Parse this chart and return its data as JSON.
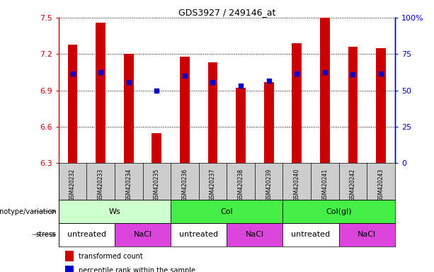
{
  "title": "GDS3927 / 249146_at",
  "samples": [
    "GSM420232",
    "GSM420233",
    "GSM420234",
    "GSM420235",
    "GSM420236",
    "GSM420237",
    "GSM420238",
    "GSM420239",
    "GSM420240",
    "GSM420241",
    "GSM420242",
    "GSM420243"
  ],
  "red_values": [
    7.28,
    7.46,
    7.2,
    6.55,
    7.18,
    7.13,
    6.92,
    6.97,
    7.29,
    7.5,
    7.26,
    7.25
  ],
  "blue_values": [
    7.04,
    7.05,
    6.97,
    6.9,
    7.02,
    6.97,
    6.94,
    6.98,
    7.04,
    7.05,
    7.03,
    7.04
  ],
  "ymin": 6.3,
  "ymax": 7.5,
  "y2min": 0,
  "y2max": 100,
  "yticks": [
    6.3,
    6.6,
    6.9,
    7.2,
    7.5
  ],
  "y2ticks": [
    0,
    25,
    50,
    75,
    100
  ],
  "y2ticklabels": [
    "0",
    "25",
    "50",
    "75",
    "100%"
  ],
  "genotype_groups": [
    {
      "label": "Ws",
      "start": 0,
      "end": 4,
      "color": "#ccffcc"
    },
    {
      "label": "Col",
      "start": 4,
      "end": 8,
      "color": "#44ee44"
    },
    {
      "label": "Col(gl)",
      "start": 8,
      "end": 12,
      "color": "#44ee44"
    }
  ],
  "stress_groups": [
    {
      "label": "untreated",
      "start": 0,
      "end": 2,
      "color": "#ffffff"
    },
    {
      "label": "NaCl",
      "start": 2,
      "end": 4,
      "color": "#dd44dd"
    },
    {
      "label": "untreated",
      "start": 4,
      "end": 6,
      "color": "#ffffff"
    },
    {
      "label": "NaCl",
      "start": 6,
      "end": 8,
      "color": "#dd44dd"
    },
    {
      "label": "untreated",
      "start": 8,
      "end": 10,
      "color": "#ffffff"
    },
    {
      "label": "NaCl",
      "start": 10,
      "end": 12,
      "color": "#dd44dd"
    }
  ],
  "bar_color": "#cc0000",
  "dot_color": "#0000cc",
  "bar_width": 0.35,
  "dot_size": 18,
  "left_tick_color": "#cc0000",
  "right_tick_color": "#0000cc",
  "legend_red": "transformed count",
  "legend_blue": "percentile rank within the sample",
  "genotype_label": "genotype/variation",
  "stress_label": "stress",
  "sample_bg_color": "#cccccc",
  "grid_color": "black",
  "grid_linestyle": "dotted",
  "grid_linewidth": 0.7
}
